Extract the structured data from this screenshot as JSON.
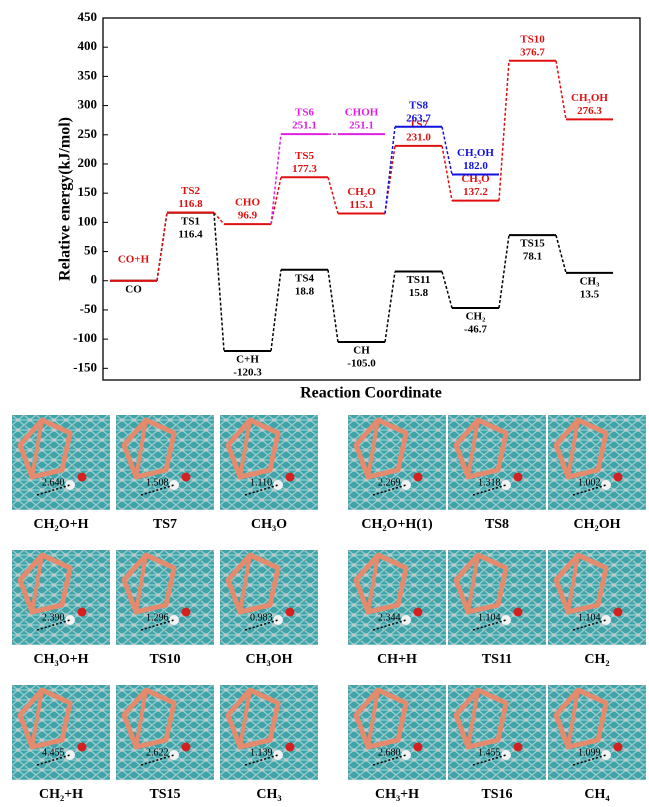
{
  "chart_data": {
    "type": "energy-profile",
    "ylabel": "Relative energy(kJ/mol)",
    "xlabel": "Reaction Coordinate",
    "ylim": [
      -170,
      450
    ],
    "yticks": [
      -150,
      -100,
      -50,
      0,
      50,
      100,
      150,
      200,
      250,
      300,
      350,
      400,
      450
    ],
    "series": [
      {
        "color": "#000000",
        "labels": [
          "CO",
          "TS1",
          "C+H",
          "TS4",
          "CH",
          "TS11",
          "CH₂",
          "TS15",
          "CH₃"
        ],
        "values": [
          0,
          116.4,
          -120.3,
          18.8,
          -105.0,
          15.8,
          -46.7,
          78.1,
          13.5
        ],
        "value_labels": [
          null,
          "116.4",
          "-120.3",
          "18.8",
          "-105.0",
          "15.8",
          "-46.7",
          "78.1",
          "13.5"
        ]
      },
      {
        "color": "#e01010",
        "labels": [
          "CO+H",
          "TS2",
          "CHO",
          "TS5",
          "CH₂O",
          "TS7",
          "CH₃O",
          "TS10",
          "CH₃OH"
        ],
        "values": [
          0,
          116.8,
          96.9,
          177.3,
          115.1,
          231.0,
          137.2,
          376.7,
          276.3
        ],
        "value_labels": [
          null,
          "116.8",
          "96.9",
          "177.3",
          "115.1",
          "231.0",
          "137.2",
          "376.7",
          "276.3"
        ]
      },
      {
        "color": "#e020e0",
        "labels": [
          null,
          null,
          null,
          "TS6",
          "CHOH",
          null,
          null,
          null,
          null
        ],
        "values": [
          null,
          null,
          null,
          251.1,
          251.1,
          null,
          null,
          null,
          null
        ],
        "value_labels": [
          null,
          null,
          null,
          "251.1",
          "251.1",
          null,
          null,
          null,
          null
        ]
      },
      {
        "color": "#1010e0",
        "labels": [
          null,
          null,
          null,
          null,
          null,
          "TS8",
          "CH₂OH",
          null,
          null
        ],
        "values": [
          null,
          null,
          null,
          null,
          null,
          263.7,
          182.0,
          null,
          null
        ],
        "value_labels": [
          null,
          null,
          null,
          null,
          null,
          "263.7",
          "182.0",
          null,
          null
        ]
      }
    ]
  },
  "panels": [
    {
      "caption": "CH₂O+H",
      "distance": "2.640"
    },
    {
      "caption": "TS7",
      "distance": "1.508"
    },
    {
      "caption": "CH₃O",
      "distance": "1.110"
    },
    {
      "caption": "CH₂O+H(1)",
      "distance": "2.269"
    },
    {
      "caption": "TS8",
      "distance": "1.318"
    },
    {
      "caption": "CH₂OH",
      "distance": "1.002"
    },
    {
      "caption": "CH₃O+H",
      "distance": "2.390"
    },
    {
      "caption": "TS10",
      "distance": "1.296"
    },
    {
      "caption": "CH₃OH",
      "distance": "0.983"
    },
    {
      "caption": "CH+H",
      "distance": "2.344"
    },
    {
      "caption": "TS11",
      "distance": "1.104"
    },
    {
      "caption": "CH₂",
      "distance": "1.104"
    },
    {
      "caption": "CH₂+H",
      "distance": "4.455"
    },
    {
      "caption": "TS15",
      "distance": "2.622"
    },
    {
      "caption": "CH₃",
      "distance": "1.139"
    },
    {
      "caption": "CH₃+H",
      "distance": "2.680"
    },
    {
      "caption": "TS16",
      "distance": "1.455"
    },
    {
      "caption": "CH₄",
      "distance": "1.099"
    }
  ]
}
